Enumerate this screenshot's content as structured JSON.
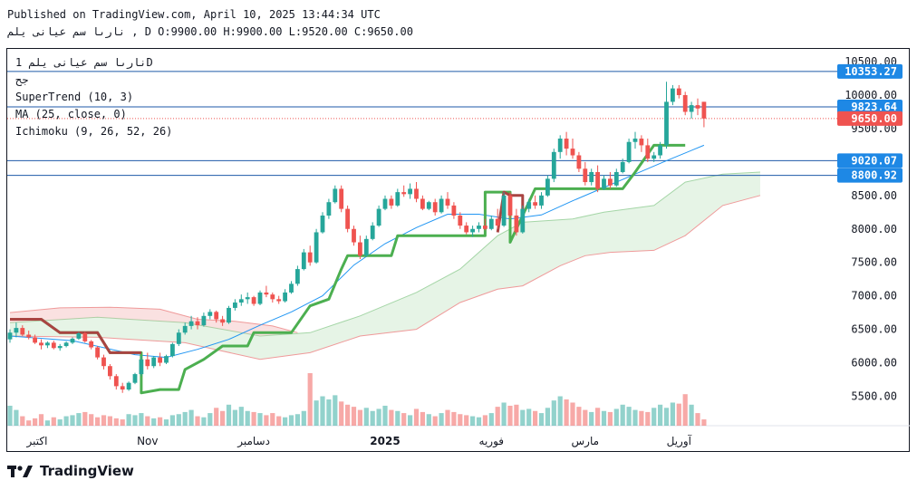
{
  "header": {
    "published": "Published on TradingView.com, April 10, 2025 13:44:34 UTC",
    "ohlc_line": "نارىا سم عيانى يلم , D O:9900.00 H:9900.00 L:9520.00 C:9650.00"
  },
  "legend": {
    "symbol": "نارىا سم عيانى يلم 1D",
    "exchange": "جح",
    "supertrend": "SuperTrend (10, 3)",
    "ma": "MA (25, close, 0)",
    "ichimoku": "Ichimoku (9, 26, 52, 26)"
  },
  "brand": {
    "name": "TradingView"
  },
  "colors": {
    "up": "#26a69a",
    "down": "#ef5350",
    "supertrend_up": "#4caf50",
    "supertrend_down": "#a94442",
    "ma": "#2196f3",
    "cloud_up": "#a5d6a7",
    "cloud_down": "#ef9a9a",
    "hline": "#1e5aa8"
  },
  "chart_data": {
    "type": "candlestick",
    "title": "نارىا سم عيانى يلم 1D",
    "ylim": [
      5100,
      10650
    ],
    "y_ticks": [
      5500,
      6000,
      6500,
      7000,
      7500,
      8000,
      8500,
      9000,
      9500,
      10000,
      10500
    ],
    "y_tick_labels": [
      "5500.00",
      "6000.00",
      "6500.00",
      "7000.00",
      "7500.00",
      "8000.00",
      "8500.00",
      "9000.00",
      "9500.00",
      "10000.00",
      "10500.00"
    ],
    "x_labels": [
      {
        "label": "اكتبر",
        "day": 0
      },
      {
        "label": "Nov",
        "day": 22
      },
      {
        "label": "دسامبر",
        "day": 39
      },
      {
        "label": "2025",
        "day": 60
      },
      {
        "label": "فوريه",
        "day": 77
      },
      {
        "label": "مارس",
        "day": 92
      },
      {
        "label": "آوريل",
        "day": 107
      }
    ],
    "horizontal_levels": [
      {
        "value": 10353.27,
        "label": "10353.27",
        "color": "#1e88e5",
        "style": "solid"
      },
      {
        "value": 9823.64,
        "label": "9823.64",
        "color": "#1e88e5",
        "style": "solid"
      },
      {
        "value": 9650.0,
        "label": "9650.00",
        "color": "#ef5350",
        "style": "dotted"
      },
      {
        "value": 9020.07,
        "label": "9020.07",
        "color": "#1e88e5",
        "style": "solid"
      },
      {
        "value": 8800.92,
        "label": "8800.92",
        "color": "#1e88e5",
        "style": "solid"
      }
    ],
    "last_price": 9650.0,
    "candles": [
      [
        6350,
        6500,
        6300,
        6450
      ],
      [
        6450,
        6600,
        6380,
        6520
      ],
      [
        6520,
        6560,
        6400,
        6420
      ],
      [
        6420,
        6480,
        6350,
        6380
      ],
      [
        6380,
        6420,
        6280,
        6300
      ],
      [
        6300,
        6350,
        6200,
        6260
      ],
      [
        6260,
        6320,
        6220,
        6300
      ],
      [
        6300,
        6330,
        6200,
        6220
      ],
      [
        6220,
        6280,
        6180,
        6250
      ],
      [
        6250,
        6320,
        6230,
        6300
      ],
      [
        6300,
        6380,
        6280,
        6360
      ],
      [
        6360,
        6460,
        6340,
        6440
      ],
      [
        6440,
        6460,
        6300,
        6320
      ],
      [
        6320,
        6340,
        6200,
        6230
      ],
      [
        6230,
        6250,
        6050,
        6080
      ],
      [
        6080,
        6120,
        5900,
        5950
      ],
      [
        5950,
        5980,
        5750,
        5800
      ],
      [
        5800,
        5830,
        5600,
        5650
      ],
      [
        5650,
        5700,
        5550,
        5600
      ],
      [
        5600,
        5720,
        5580,
        5700
      ],
      [
        5700,
        5850,
        5680,
        5830
      ],
      [
        5830,
        6100,
        5800,
        6050
      ],
      [
        6050,
        6150,
        5900,
        5950
      ],
      [
        5950,
        6100,
        5920,
        6080
      ],
      [
        6080,
        6150,
        5950,
        6000
      ],
      [
        6000,
        6120,
        5980,
        6100
      ],
      [
        6100,
        6300,
        6080,
        6280
      ],
      [
        6280,
        6500,
        6250,
        6450
      ],
      [
        6450,
        6600,
        6420,
        6550
      ],
      [
        6550,
        6700,
        6500,
        6620
      ],
      [
        6620,
        6680,
        6500,
        6560
      ],
      [
        6560,
        6750,
        6540,
        6700
      ],
      [
        6700,
        6800,
        6650,
        6760
      ],
      [
        6760,
        6780,
        6600,
        6650
      ],
      [
        6650,
        6700,
        6550,
        6600
      ],
      [
        6600,
        6850,
        6580,
        6820
      ],
      [
        6820,
        6950,
        6780,
        6900
      ],
      [
        6900,
        7020,
        6850,
        6950
      ],
      [
        6950,
        7050,
        6880,
        6980
      ],
      [
        6980,
        7000,
        6850,
        6880
      ],
      [
        6880,
        7080,
        6860,
        7050
      ],
      [
        7050,
        7150,
        6980,
        7020
      ],
      [
        7020,
        7050,
        6900,
        6950
      ],
      [
        6950,
        7000,
        6880,
        6920
      ],
      [
        6920,
        7100,
        6900,
        7050
      ],
      [
        7050,
        7220,
        7030,
        7180
      ],
      [
        7180,
        7450,
        7150,
        7400
      ],
      [
        7400,
        7700,
        7380,
        7650
      ],
      [
        7650,
        7750,
        7450,
        7500
      ],
      [
        7500,
        8000,
        7480,
        7950
      ],
      [
        7950,
        8250,
        7930,
        8200
      ],
      [
        8200,
        8450,
        8150,
        8400
      ],
      [
        8400,
        8650,
        8380,
        8600
      ],
      [
        8600,
        8650,
        8250,
        8300
      ],
      [
        8300,
        8350,
        7950,
        8000
      ],
      [
        8000,
        8050,
        7750,
        7800
      ],
      [
        7800,
        7900,
        7550,
        7600
      ],
      [
        7600,
        7900,
        7580,
        7850
      ],
      [
        7850,
        8100,
        7830,
        8050
      ],
      [
        8050,
        8350,
        8030,
        8300
      ],
      [
        8300,
        8500,
        8280,
        8450
      ],
      [
        8450,
        8500,
        8300,
        8350
      ],
      [
        8350,
        8600,
        8330,
        8550
      ],
      [
        8550,
        8650,
        8480,
        8520
      ],
      [
        8520,
        8680,
        8450,
        8600
      ],
      [
        8600,
        8700,
        8400,
        8450
      ],
      [
        8450,
        8500,
        8280,
        8300
      ],
      [
        8300,
        8420,
        8280,
        8400
      ],
      [
        8400,
        8450,
        8200,
        8250
      ],
      [
        8250,
        8500,
        8230,
        8450
      ],
      [
        8450,
        8550,
        8300,
        8350
      ],
      [
        8350,
        8400,
        8150,
        8200
      ],
      [
        8200,
        8250,
        8000,
        8050
      ],
      [
        8050,
        8100,
        7920,
        7950
      ],
      [
        7950,
        8050,
        7880,
        8000
      ],
      [
        8000,
        8100,
        7950,
        8050
      ],
      [
        8050,
        8150,
        7980,
        8000
      ],
      [
        8000,
        8200,
        7980,
        8150
      ],
      [
        8150,
        8300,
        8000,
        8050
      ],
      [
        8050,
        8550,
        8030,
        8500
      ],
      [
        8500,
        8550,
        8150,
        8200
      ],
      [
        8200,
        8300,
        7900,
        7950
      ],
      [
        7950,
        8350,
        7930,
        8300
      ],
      [
        8300,
        8450,
        8250,
        8400
      ],
      [
        8400,
        8500,
        8300,
        8350
      ],
      [
        8350,
        8550,
        8300,
        8500
      ],
      [
        8500,
        8800,
        8480,
        8750
      ],
      [
        8750,
        9200,
        8700,
        9150
      ],
      [
        9150,
        9400,
        9050,
        9350
      ],
      [
        9350,
        9450,
        9100,
        9200
      ],
      [
        9200,
        9350,
        9050,
        9100
      ],
      [
        9100,
        9150,
        8850,
        8900
      ],
      [
        8900,
        9000,
        8650,
        8700
      ],
      [
        8700,
        8900,
        8650,
        8850
      ],
      [
        8850,
        8950,
        8550,
        8600
      ],
      [
        8600,
        8800,
        8580,
        8750
      ],
      [
        8750,
        8850,
        8600,
        8650
      ],
      [
        8650,
        8900,
        8630,
        8850
      ],
      [
        8850,
        9050,
        8830,
        9000
      ],
      [
        9000,
        9350,
        8980,
        9300
      ],
      [
        9300,
        9450,
        9200,
        9350
      ],
      [
        9350,
        9400,
        9150,
        9250
      ],
      [
        9250,
        9350,
        9000,
        9050
      ],
      [
        9050,
        9150,
        9000,
        9100
      ],
      [
        9100,
        9300,
        9050,
        9250
      ],
      [
        9250,
        10200,
        9200,
        9900
      ],
      [
        9900,
        10150,
        9850,
        10100
      ],
      [
        10100,
        10150,
        9950,
        10000
      ],
      [
        10000,
        10050,
        9700,
        9750
      ],
      [
        9750,
        9900,
        9650,
        9850
      ],
      [
        9850,
        9950,
        9700,
        9800
      ],
      [
        9900,
        9900,
        9520,
        9650
      ]
    ],
    "volumes": [
      38,
      30,
      18,
      10,
      14,
      22,
      10,
      16,
      12,
      18,
      20,
      24,
      26,
      22,
      16,
      20,
      18,
      14,
      12,
      22,
      20,
      24,
      18,
      14,
      16,
      12,
      20,
      22,
      26,
      30,
      18,
      16,
      24,
      34,
      28,
      40,
      30,
      36,
      28,
      26,
      24,
      20,
      24,
      18,
      16,
      20,
      22,
      28,
      100,
      48,
      56,
      50,
      58,
      46,
      40,
      36,
      30,
      34,
      28,
      32,
      38,
      30,
      28,
      24,
      20,
      32,
      26,
      22,
      18,
      24,
      30,
      26,
      22,
      20,
      18,
      16,
      20,
      24,
      36,
      44,
      38,
      40,
      30,
      32,
      28,
      24,
      34,
      48,
      56,
      50,
      44,
      36,
      30,
      26,
      34,
      28,
      26,
      32,
      40,
      36,
      30,
      28,
      26,
      34,
      40,
      34,
      44,
      42,
      60,
      40,
      24,
      12
    ],
    "ma": [
      [
        0,
        6400
      ],
      [
        10,
        6330
      ],
      [
        20,
        6120
      ],
      [
        25,
        6080
      ],
      [
        30,
        6200
      ],
      [
        35,
        6350
      ],
      [
        40,
        6560
      ],
      [
        45,
        6760
      ],
      [
        50,
        7000
      ],
      [
        55,
        7460
      ],
      [
        60,
        7780
      ],
      [
        65,
        8020
      ],
      [
        70,
        8220
      ],
      [
        75,
        8220
      ],
      [
        80,
        8150
      ],
      [
        85,
        8210
      ],
      [
        90,
        8420
      ],
      [
        95,
        8620
      ],
      [
        100,
        8820
      ],
      [
        105,
        9020
      ],
      [
        111,
        9250
      ]
    ],
    "supertrend": [
      [
        0,
        6650
      ],
      [
        5,
        6650
      ],
      [
        8,
        6450
      ],
      [
        14,
        6450
      ],
      [
        16,
        6150
      ],
      [
        21,
        6150
      ],
      [
        21,
        5550
      ],
      [
        24,
        5600
      ],
      [
        27,
        5600
      ],
      [
        28,
        5900
      ],
      [
        31,
        6050
      ],
      [
        34,
        6250
      ],
      [
        38,
        6250
      ],
      [
        39,
        6450
      ],
      [
        45,
        6450
      ],
      [
        48,
        6850
      ],
      [
        51,
        6950
      ],
      [
        53,
        7400
      ],
      [
        54,
        7600
      ],
      [
        61,
        7600
      ],
      [
        62,
        7900
      ],
      [
        76,
        7900
      ],
      [
        76,
        8550
      ],
      [
        80,
        8550
      ],
      [
        80,
        7800
      ],
      [
        82,
        8200
      ],
      [
        84,
        8600
      ],
      [
        98,
        8600
      ],
      [
        100,
        8850
      ],
      [
        103,
        9250
      ],
      [
        108,
        9250
      ]
    ],
    "supertrend_red": [
      [
        78,
        7950
      ],
      [
        79,
        8550
      ],
      [
        80,
        8500
      ],
      [
        82,
        8500
      ],
      [
        82,
        8250
      ]
    ],
    "cloud_top": [
      [
        0,
        6600
      ],
      [
        14,
        6680
      ],
      [
        28,
        6600
      ],
      [
        40,
        6400
      ],
      [
        48,
        6450
      ],
      [
        56,
        6700
      ],
      [
        65,
        7050
      ],
      [
        72,
        7400
      ],
      [
        78,
        7900
      ],
      [
        82,
        8100
      ],
      [
        90,
        8150
      ],
      [
        95,
        8250
      ],
      [
        103,
        8350
      ],
      [
        108,
        8700
      ],
      [
        114,
        8820
      ],
      [
        120,
        8850
      ]
    ],
    "cloud_bottom": [
      [
        0,
        6400
      ],
      [
        14,
        6380
      ],
      [
        28,
        6300
      ],
      [
        40,
        6050
      ],
      [
        48,
        6150
      ],
      [
        56,
        6400
      ],
      [
        65,
        6500
      ],
      [
        72,
        6900
      ],
      [
        78,
        7100
      ],
      [
        82,
        7150
      ],
      [
        88,
        7450
      ],
      [
        92,
        7600
      ],
      [
        96,
        7650
      ],
      [
        103,
        7680
      ],
      [
        108,
        7900
      ],
      [
        114,
        8350
      ],
      [
        120,
        8500
      ]
    ],
    "cloud_red_segment": [
      [
        0,
        6750
      ],
      [
        8,
        6820
      ],
      [
        16,
        6830
      ],
      [
        24,
        6800
      ],
      [
        30,
        6650
      ],
      [
        36,
        6620
      ],
      [
        42,
        6550
      ],
      [
        46,
        6450
      ]
    ]
  }
}
